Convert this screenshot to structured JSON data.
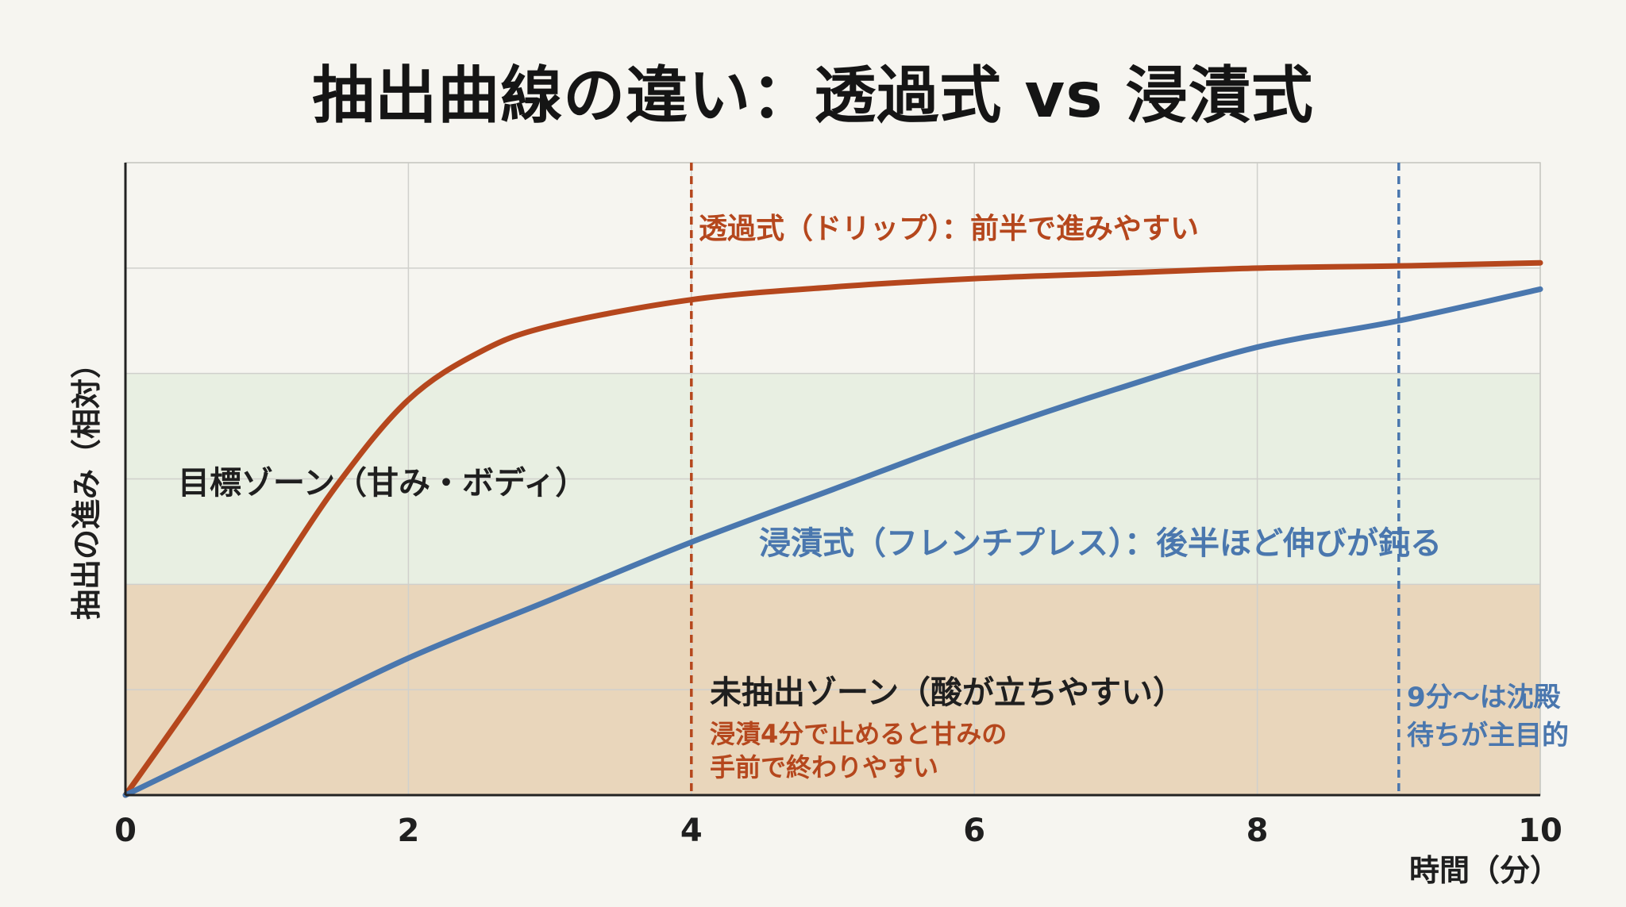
{
  "title": "抽出曲線の違い：透過式 vs 浸漬式",
  "colors": {
    "background": "#f6f5f0",
    "drip": "#b5471d",
    "immersion": "#4a77ae",
    "target_zone": "#e8efe2",
    "under_zone": "#e9d6bb",
    "grid": "#d0d0cc",
    "axis": "#222222"
  },
  "annotations": {
    "drip_label": "透過式（ドリップ）：前半で進みやすい",
    "immersion_label": "浸漬式（フレンチプレス）：後半ほど伸びが鈍る",
    "target_zone_label": "目標ゾーン（甘み・ボディ）",
    "under_zone_label": "未抽出ゾーン（酸が立ちやすい）",
    "immersion_note_line1": "浸漬4分で止めると甘みの",
    "immersion_note_line2": "手前で終わりやすい",
    "settle_note_line1": "9分〜は沈殿",
    "settle_note_line2": "待ちが主目的"
  },
  "chart_data": {
    "type": "line",
    "title": "抽出曲線の違い：透過式 vs 浸漬式",
    "xlabel": "時間（分）",
    "ylabel": "抽出の進み（相対）",
    "xlim": [
      0,
      10
    ],
    "ylim": [
      0,
      6
    ],
    "xticks": [
      0,
      2,
      4,
      6,
      8,
      10
    ],
    "y_tick_labels_shown": false,
    "grid": true,
    "zones": [
      {
        "name": "目標ゾーン（甘み・ボディ）",
        "y_from": 2,
        "y_to": 4
      },
      {
        "name": "未抽出ゾーン（酸が立ちやすい）",
        "y_from": 0,
        "y_to": 2
      }
    ],
    "vertical_markers": [
      {
        "x": 4,
        "series": "浸漬式",
        "style": "dashed"
      },
      {
        "x": 9,
        "series": "浸漬式",
        "style": "dashed"
      }
    ],
    "series": [
      {
        "name": "透過式（ドリップ）",
        "x": [
          0,
          0.5,
          1,
          1.5,
          2,
          2.5,
          3,
          4,
          5,
          6,
          7,
          8,
          9,
          10
        ],
        "values": [
          0,
          0.95,
          1.95,
          2.95,
          3.75,
          4.2,
          4.45,
          4.7,
          4.82,
          4.9,
          4.95,
          5.0,
          5.02,
          5.05
        ]
      },
      {
        "name": "浸漬式（フレンチプレス）",
        "x": [
          0,
          1,
          2,
          3,
          4,
          5,
          6,
          7,
          8,
          9,
          10
        ],
        "values": [
          0,
          0.65,
          1.3,
          1.85,
          2.4,
          2.9,
          3.4,
          3.85,
          4.25,
          4.5,
          4.8
        ]
      }
    ]
  }
}
